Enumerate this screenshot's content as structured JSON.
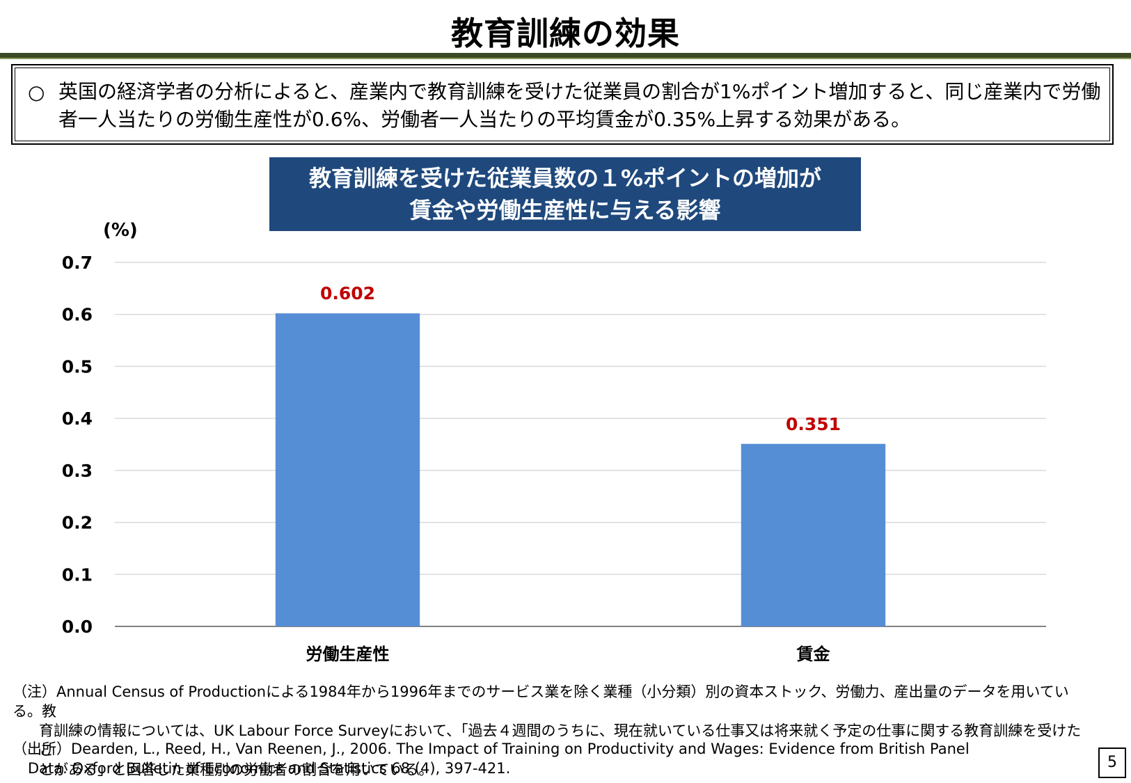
{
  "page": {
    "title": "教育訓練の効果",
    "page_number": "5"
  },
  "summary": {
    "bullet": "○",
    "text": "英国の経済学者の分析によると、産業内で教育訓練を受けた従業員の割合が1%ポイント増加すると、同じ産業内で労働者一人当たりの労働生産性が0.6%、労働者一人当たりの平均賃金が0.35%上昇する効果がある。"
  },
  "chart_title": {
    "line1": "教育訓練を受けた従業員数の１%ポイントの増加が",
    "line2": "賃金や労働生産性に与える影響"
  },
  "chart_data": {
    "type": "bar",
    "categories": [
      "労働生産性",
      "賃金"
    ],
    "values": [
      0.602,
      0.351
    ],
    "value_labels": [
      "0.602",
      "0.351"
    ],
    "ylabel": "(%)",
    "ylim": [
      0,
      0.7
    ],
    "yticks": [
      "0.0",
      "0.1",
      "0.2",
      "0.3",
      "0.4",
      "0.5",
      "0.6",
      "0.7"
    ],
    "grid": true,
    "bar_color": "#558ed5",
    "label_color": "#c00000"
  },
  "note": {
    "line1": "（注）Annual Census of Productionによる1984年から1996年までのサービス業を除く業種（小分類）別の資本ストック、労働力、産出量のデータを用いている。教",
    "line2": "育訓練の情報については、UK Labour Force Surveyにおいて、「過去４週間のうちに、現在就いている仕事又は将来就く予定の仕事に関する教育訓練を受けたこ",
    "line3": "とがある」と回答した業種別の労働者の割合を用いている。"
  },
  "source": {
    "line1": "（出所）Dearden, L., Reed, H., Van Reenen, J., 2006. The Impact of Training on Productivity and Wages: Evidence from British Panel",
    "line2": "Data. Oxford Bulletin of Economics and Statistics 68 (4), 397-421."
  }
}
